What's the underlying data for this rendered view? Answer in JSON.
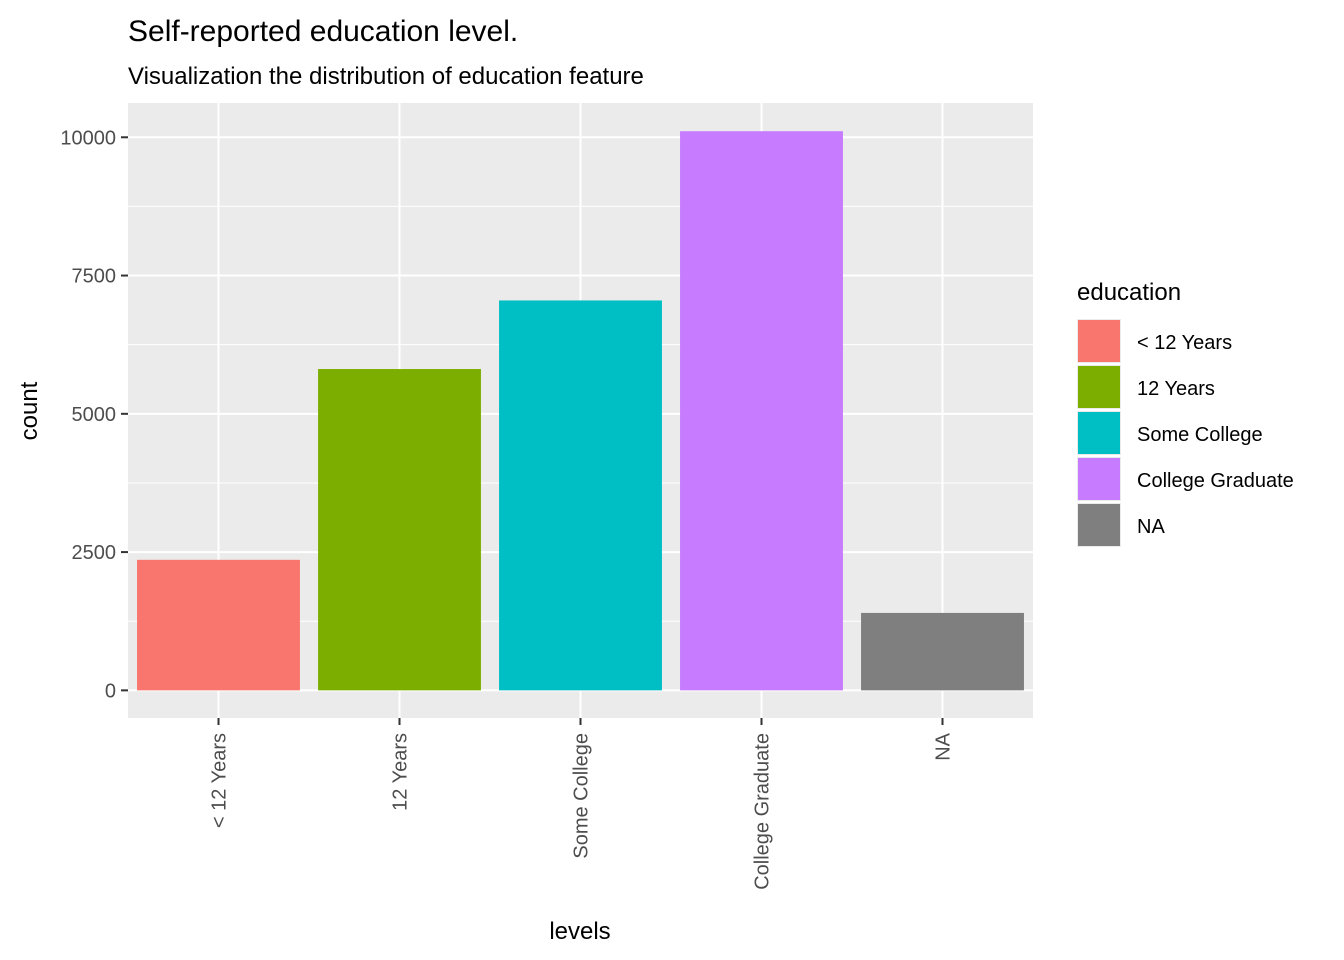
{
  "chart_data": {
    "type": "bar",
    "title": "Self-reported education level.",
    "subtitle": "Visualization the distribution of education feature",
    "xlabel": "levels",
    "ylabel": "count",
    "categories": [
      "< 12 Years",
      "12 Years",
      "Some College",
      "College Graduate",
      "NA"
    ],
    "values": [
      2360,
      5810,
      7050,
      10110,
      1400
    ],
    "colors": [
      "#F8766D",
      "#7CAE00",
      "#00BFC4",
      "#C77CFF",
      "#7F7F7F"
    ],
    "yticks": [
      0,
      2500,
      5000,
      7500,
      10000
    ],
    "ylim": [
      -500,
      10620
    ],
    "grid": true,
    "panel_background": "#EBEBEB",
    "legend": {
      "title": "education",
      "position": "right",
      "entries": [
        "< 12 Years",
        "12 Years",
        "Some College",
        "College Graduate",
        "NA"
      ]
    }
  }
}
